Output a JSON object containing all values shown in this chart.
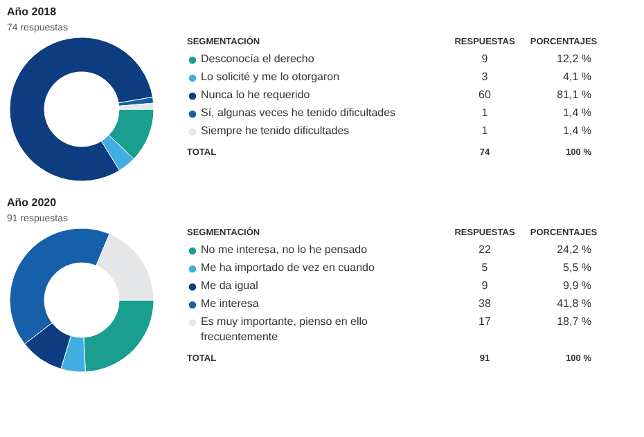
{
  "chart_data": [
    {
      "type": "donut",
      "title": "Año 2018",
      "subtitle": "74 respuestas",
      "legend_title": "SEGMENTACIÓN",
      "legend": "right",
      "data_labels": true,
      "categories": [
        "Desconocía el derecho",
        "Lo solicité y me lo otorgaron",
        "Nunca lo he requerido",
        "Sí, algunas veces he tenido dificultades",
        "Siempre he tenido dificultades"
      ],
      "values": [
        9,
        3,
        60,
        1,
        1
      ],
      "colors": [
        "#1a9e8f",
        "#41aee3",
        "#0d3d80",
        "#1560a8",
        "#e4e6e8"
      ],
      "annotations": [
        "RESPUESTAS",
        "PORCENTAJES",
        "12,2 %",
        "4,1 %",
        "81,1 %",
        "1,4 %",
        "1,4 %",
        "TOTAL",
        "74",
        "100 %"
      ]
    },
    {
      "type": "donut",
      "title": "Año 2020",
      "subtitle": "91 respuestas",
      "legend_title": "SEGMENTACIÓN",
      "legend": "right",
      "data_labels": true,
      "categories": [
        "No me interesa, no lo he pensado",
        "Me ha importado de vez en cuando",
        "Me da igual",
        "Me interesa",
        "Es muy importante, pienso en ello frecuentemente"
      ],
      "values": [
        22,
        5,
        9,
        38,
        17
      ],
      "colors": [
        "#1a9e8f",
        "#41aee3",
        "#0d3d80",
        "#1560a8",
        "#e4e6e8"
      ],
      "annotations": [
        "RESPUESTAS",
        "PORCENTAJES",
        "24,2 %",
        "5,5 %",
        "9,9 %",
        "41,8 %",
        "18,7 %",
        "TOTAL",
        "91",
        "100 %"
      ]
    }
  ]
}
